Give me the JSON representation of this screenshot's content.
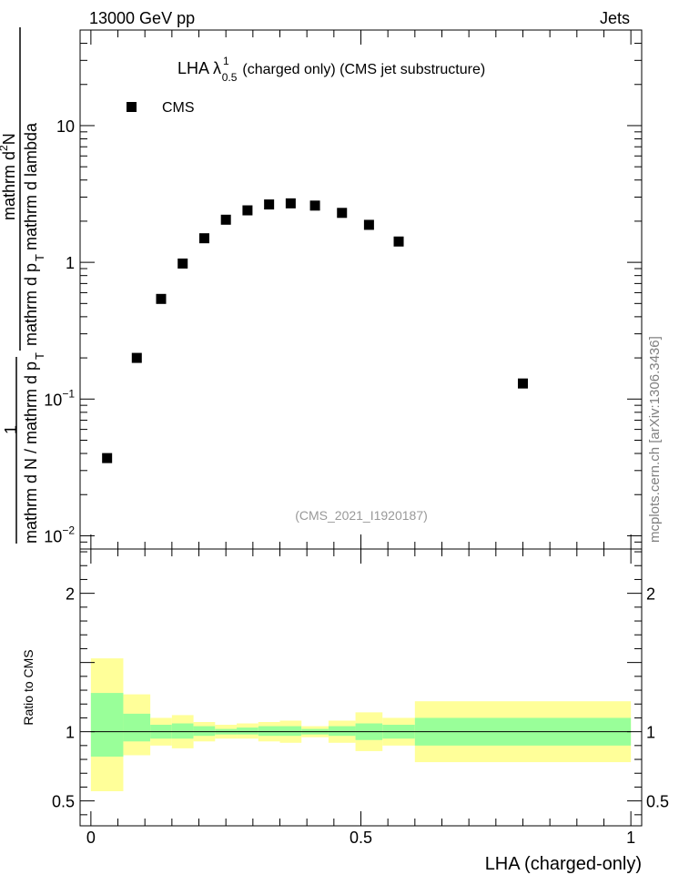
{
  "header": {
    "energy_label": "13000 GeV pp",
    "process_label": "Jets",
    "side_label": "mcplots.cern.ch [arXiv:1306.3436]"
  },
  "chart_data": [
    {
      "type": "scatter",
      "title": "LHA λ",
      "title_sup": "1",
      "title_sub": "0.5",
      "title_suffix": "(charged only) (CMS jet substructure)",
      "watermark": "(CMS_2021_I1920187)",
      "ylabel_parts": {
        "numerator_top": "mathrm d",
        "numerator_sup": "2",
        "numerator_rest": "N",
        "denominator": "mathrm d p",
        "denominator_sub": "T",
        "denominator_rest": "mathrm d lambda",
        "prefactor_num": "1",
        "prefactor_den": "mathrm d N / mathrm d p",
        "prefactor_den_sub": "T"
      },
      "yscale": "log",
      "ylim": [
        0.008,
        50
      ],
      "xlim": [
        -0.02,
        1.02
      ],
      "ytick_labels": [
        {
          "value": 0.01,
          "mant": "10",
          "exp": "−2"
        },
        {
          "value": 0.1,
          "mant": "10",
          "exp": "−1"
        },
        {
          "value": 1,
          "mant": "1",
          "exp": ""
        },
        {
          "value": 10,
          "mant": "10",
          "exp": ""
        }
      ],
      "series": [
        {
          "name": "CMS",
          "color": "#000000",
          "marker": "square",
          "x": [
            0.03,
            0.085,
            0.13,
            0.17,
            0.21,
            0.25,
            0.29,
            0.33,
            0.37,
            0.415,
            0.465,
            0.515,
            0.57,
            0.8
          ],
          "y": [
            0.037,
            0.2,
            0.54,
            0.98,
            1.5,
            2.05,
            2.4,
            2.65,
            2.7,
            2.6,
            2.3,
            1.88,
            1.42,
            0.13
          ]
        }
      ],
      "legend_placement": "top-left"
    },
    {
      "type": "area",
      "ylabel": "Ratio to CMS",
      "xlabel": "LHA (charged-only)",
      "xlim": [
        -0.02,
        1.02
      ],
      "ylim": [
        0.32,
        2.32
      ],
      "ytick_labels": [
        "0.5",
        "1",
        "2"
      ],
      "ytick_values": [
        0.5,
        1,
        2
      ],
      "xtick_labels": [
        "0",
        "0.5",
        "1"
      ],
      "xtick_values": [
        0,
        0.5,
        1
      ],
      "reference_line": 1,
      "band_colors": {
        "inner": "#99ff99",
        "outer": "#ffff99"
      },
      "bins": [
        {
          "x0": 0.0,
          "x1": 0.06,
          "inner": [
            0.82,
            1.28
          ],
          "outer": [
            0.57,
            1.53
          ]
        },
        {
          "x0": 0.06,
          "x1": 0.11,
          "inner": [
            0.93,
            1.13
          ],
          "outer": [
            0.83,
            1.27
          ]
        },
        {
          "x0": 0.11,
          "x1": 0.15,
          "inner": [
            0.95,
            1.05
          ],
          "outer": [
            0.9,
            1.1
          ]
        },
        {
          "x0": 0.15,
          "x1": 0.19,
          "inner": [
            0.95,
            1.06
          ],
          "outer": [
            0.88,
            1.12
          ]
        },
        {
          "x0": 0.19,
          "x1": 0.23,
          "inner": [
            0.97,
            1.04
          ],
          "outer": [
            0.93,
            1.07
          ]
        },
        {
          "x0": 0.23,
          "x1": 0.27,
          "inner": [
            0.98,
            1.02
          ],
          "outer": [
            0.95,
            1.05
          ]
        },
        {
          "x0": 0.27,
          "x1": 0.31,
          "inner": [
            0.98,
            1.03
          ],
          "outer": [
            0.95,
            1.06
          ]
        },
        {
          "x0": 0.31,
          "x1": 0.35,
          "inner": [
            0.97,
            1.04
          ],
          "outer": [
            0.93,
            1.07
          ]
        },
        {
          "x0": 0.35,
          "x1": 0.39,
          "inner": [
            0.97,
            1.04
          ],
          "outer": [
            0.92,
            1.08
          ]
        },
        {
          "x0": 0.39,
          "x1": 0.44,
          "inner": [
            0.98,
            1.02
          ],
          "outer": [
            0.96,
            1.04
          ]
        },
        {
          "x0": 0.44,
          "x1": 0.49,
          "inner": [
            0.97,
            1.04
          ],
          "outer": [
            0.92,
            1.08
          ]
        },
        {
          "x0": 0.49,
          "x1": 0.54,
          "inner": [
            0.94,
            1.06
          ],
          "outer": [
            0.86,
            1.14
          ]
        },
        {
          "x0": 0.54,
          "x1": 0.6,
          "inner": [
            0.95,
            1.05
          ],
          "outer": [
            0.9,
            1.1
          ]
        },
        {
          "x0": 0.6,
          "x1": 1.0,
          "inner": [
            0.9,
            1.1
          ],
          "outer": [
            0.78,
            1.22
          ]
        }
      ]
    }
  ]
}
